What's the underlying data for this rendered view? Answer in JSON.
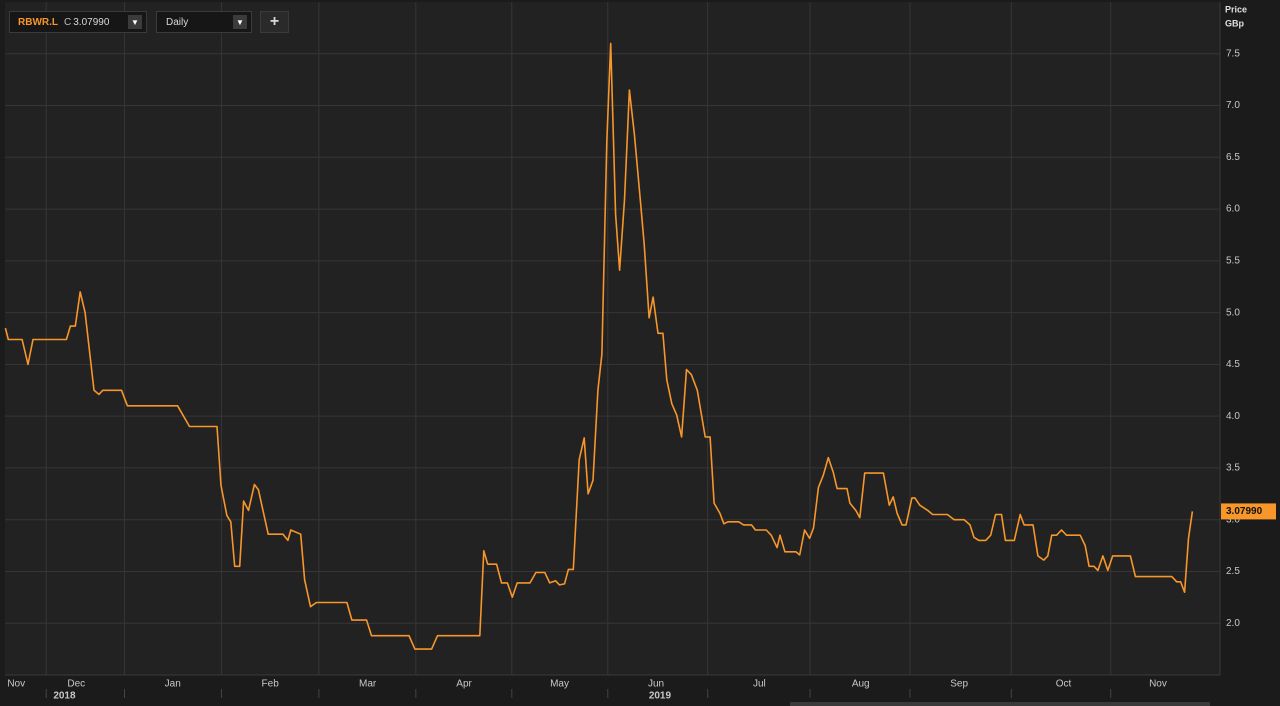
{
  "toolbar": {
    "symbol": "RBWR.L",
    "close_prefix": "C",
    "interval": "Daily"
  },
  "chart_data": {
    "type": "line",
    "ylabel": "Price",
    "yunit": "GBp",
    "xlim": [
      0.766,
      13.11
    ],
    "ylim": [
      1.5,
      8.0
    ],
    "grid": true,
    "xticks": [
      {
        "value": 0.88,
        "label": "Nov"
      },
      {
        "value": 1.49,
        "label": "Dec"
      },
      {
        "value": 2.47,
        "label": "Jan"
      },
      {
        "value": 3.46,
        "label": "Feb"
      },
      {
        "value": 4.45,
        "label": "Mar"
      },
      {
        "value": 5.43,
        "label": "Apr"
      },
      {
        "value": 6.4,
        "label": "May"
      },
      {
        "value": 7.38,
        "label": "Jun"
      },
      {
        "value": 8.43,
        "label": "Jul"
      },
      {
        "value": 9.46,
        "label": "Aug"
      },
      {
        "value": 10.46,
        "label": "Sep"
      },
      {
        "value": 11.52,
        "label": "Oct"
      },
      {
        "value": 12.48,
        "label": "Nov"
      }
    ],
    "year_ticks": [
      {
        "value": 1.37,
        "label": "2018"
      },
      {
        "value": 7.42,
        "label": "2019"
      }
    ],
    "yticks": [
      {
        "value": 2,
        "label": "2.0"
      },
      {
        "value": 2.5,
        "label": "2.5"
      },
      {
        "value": 3,
        "label": "3.0"
      },
      {
        "value": 3.5,
        "label": "3.5"
      },
      {
        "value": 4,
        "label": "4.0"
      },
      {
        "value": 4.5,
        "label": "4.5"
      },
      {
        "value": 5,
        "label": "5.0"
      },
      {
        "value": 5.5,
        "label": "5.5"
      },
      {
        "value": 6,
        "label": "6.0"
      },
      {
        "value": 6.5,
        "label": "6.5"
      },
      {
        "value": 7,
        "label": "7.0"
      },
      {
        "value": 7.5,
        "label": "7.5"
      }
    ],
    "series": [
      {
        "name": "RBWR.L",
        "color": "#f7962a",
        "last_label": "3.07990",
        "x": [
          0.77,
          0.8,
          0.94,
          1.0,
          1.05,
          1.39,
          1.43,
          1.48,
          1.53,
          1.58,
          1.67,
          1.72,
          1.76,
          1.95,
          2.01,
          2.52,
          2.64,
          2.92,
          2.96,
          3.02,
          3.06,
          3.1,
          3.15,
          3.19,
          3.24,
          3.3,
          3.34,
          3.44,
          3.59,
          3.64,
          3.67,
          3.77,
          3.81,
          3.87,
          3.93,
          4.24,
          4.29,
          4.44,
          4.49,
          4.87,
          4.93,
          5.1,
          5.16,
          5.59,
          5.63,
          5.67,
          5.76,
          5.81,
          5.87,
          5.92,
          5.97,
          6.1,
          6.16,
          6.25,
          6.3,
          6.36,
          6.4,
          6.45,
          6.49,
          6.54,
          6.6,
          6.65,
          6.69,
          6.74,
          6.79,
          6.83,
          6.88,
          6.92,
          6.97,
          7.01,
          7.06,
          7.11,
          7.16,
          7.22,
          7.26,
          7.31,
          7.35,
          7.4,
          7.45,
          7.49,
          7.54,
          7.59,
          7.64,
          7.69,
          7.74,
          7.8,
          7.88,
          7.93,
          7.97,
          8.03,
          8.07,
          8.11,
          8.22,
          8.27,
          8.35,
          8.39,
          8.5,
          8.55,
          8.61,
          8.64,
          8.69,
          8.8,
          8.84,
          8.89,
          8.94,
          8.98,
          9.03,
          9.08,
          9.13,
          9.18,
          9.22,
          9.32,
          9.35,
          9.41,
          9.45,
          9.5,
          9.69,
          9.75,
          9.79,
          9.83,
          9.88,
          9.92,
          9.98,
          10.01,
          10.06,
          10.14,
          10.19,
          10.34,
          10.41,
          10.51,
          10.57,
          10.61,
          10.66,
          10.73,
          10.78,
          10.83,
          10.89,
          10.93,
          11.02,
          11.08,
          11.12,
          11.21,
          11.26,
          11.32,
          11.36,
          11.4,
          11.45,
          11.5,
          11.55,
          11.69,
          11.74,
          11.78,
          11.83,
          11.87,
          11.92,
          11.97,
          12.02,
          12.2,
          12.25,
          12.62,
          12.67,
          12.71,
          12.75,
          12.79,
          12.83
        ],
        "values": [
          4.85,
          4.74,
          4.74,
          4.5,
          4.74,
          4.74,
          4.87,
          4.87,
          5.2,
          5.0,
          4.25,
          4.21,
          4.25,
          4.25,
          4.1,
          4.1,
          3.9,
          3.9,
          3.33,
          3.04,
          2.98,
          2.55,
          2.55,
          3.18,
          3.09,
          3.34,
          3.29,
          2.86,
          2.86,
          2.8,
          2.9,
          2.86,
          2.42,
          2.16,
          2.2,
          2.2,
          2.03,
          2.03,
          1.88,
          1.88,
          1.75,
          1.75,
          1.88,
          1.88,
          2.7,
          2.57,
          2.57,
          2.39,
          2.39,
          2.25,
          2.39,
          2.39,
          2.49,
          2.49,
          2.39,
          2.41,
          2.37,
          2.38,
          2.52,
          2.52,
          3.58,
          3.79,
          3.25,
          3.38,
          4.25,
          4.6,
          6.65,
          7.6,
          5.95,
          5.41,
          6.09,
          7.15,
          6.72,
          6.09,
          5.66,
          4.95,
          5.15,
          4.8,
          4.8,
          4.35,
          4.12,
          4.01,
          3.8,
          4.45,
          4.4,
          4.25,
          3.8,
          3.8,
          3.16,
          3.06,
          2.96,
          2.98,
          2.98,
          2.95,
          2.95,
          2.9,
          2.9,
          2.85,
          2.73,
          2.85,
          2.69,
          2.69,
          2.66,
          2.9,
          2.82,
          2.92,
          3.31,
          3.43,
          3.6,
          3.46,
          3.3,
          3.3,
          3.16,
          3.09,
          3.02,
          3.45,
          3.45,
          3.14,
          3.22,
          3.06,
          2.95,
          2.95,
          3.21,
          3.21,
          3.14,
          3.09,
          3.05,
          3.05,
          3.0,
          3.0,
          2.95,
          2.83,
          2.8,
          2.8,
          2.85,
          3.05,
          3.05,
          2.8,
          2.8,
          3.05,
          2.95,
          2.95,
          2.65,
          2.61,
          2.65,
          2.85,
          2.85,
          2.9,
          2.85,
          2.85,
          2.75,
          2.55,
          2.55,
          2.51,
          2.65,
          2.51,
          2.65,
          2.65,
          2.45,
          2.45,
          2.4,
          2.4,
          2.3,
          2.82,
          3.0799
        ]
      }
    ]
  }
}
